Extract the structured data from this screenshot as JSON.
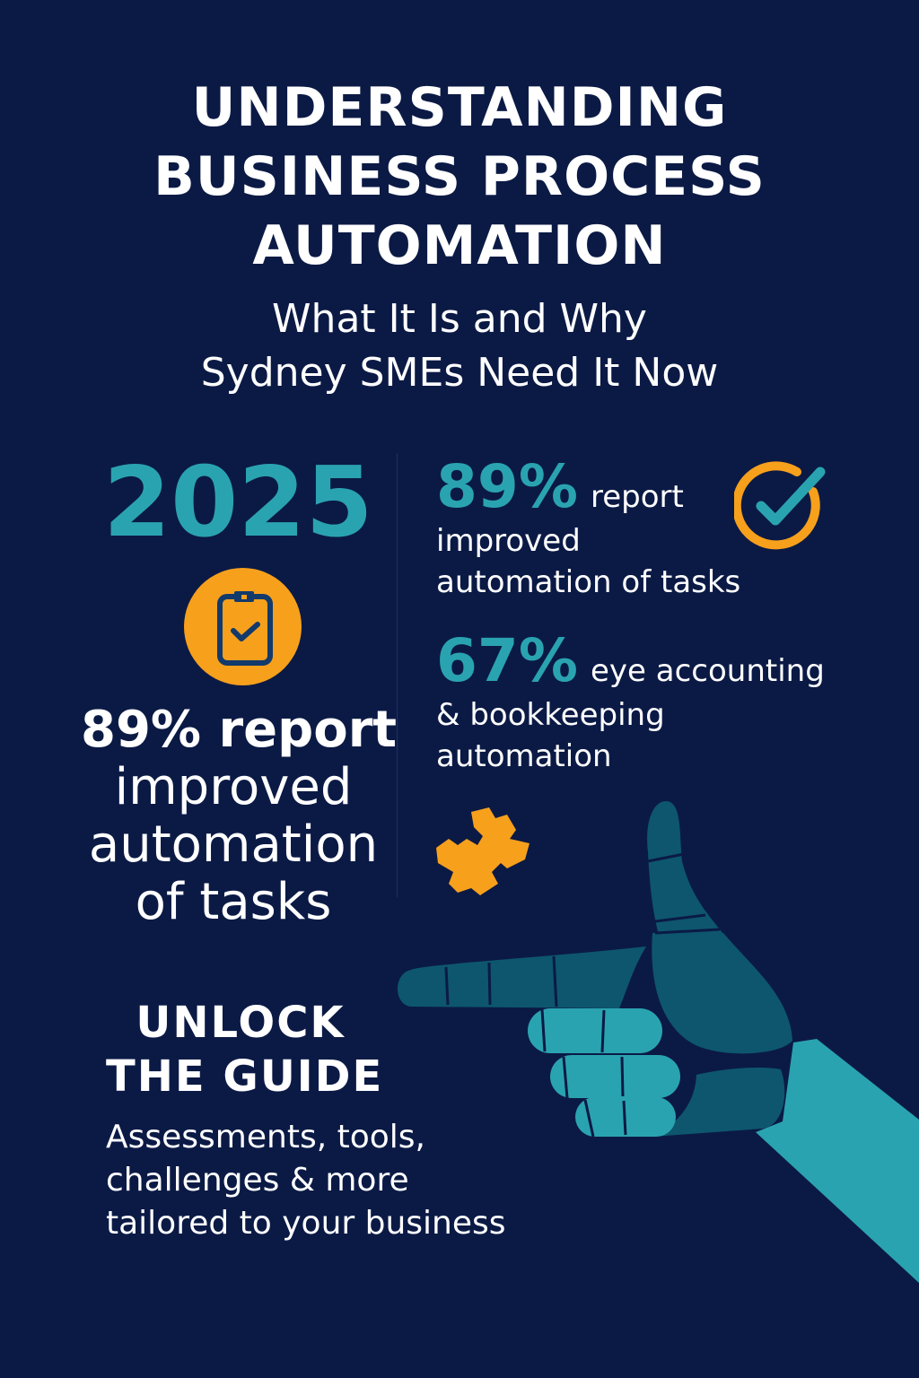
{
  "header": {
    "title_lines": [
      "UNDERSTANDING",
      "BUSINESS PROCESS",
      "AUTOMATION"
    ],
    "subtitle_lines": [
      "What It Is and Why",
      "Sydney SMEs Need It Now"
    ]
  },
  "left": {
    "year": "2025",
    "icon": "clipboard-check-icon",
    "stat_lines": [
      "89% report",
      "improved",
      "automation",
      "of tasks"
    ]
  },
  "right": {
    "stats": [
      {
        "percent": "89%",
        "text_lines": [
          "report",
          "improved",
          "automation of tasks"
        ],
        "icon": "checkmark-circle-icon"
      },
      {
        "percent": "67%",
        "text_lines": [
          "eye accounting",
          "& bookkeeping",
          "automation"
        ]
      }
    ],
    "puzzle_icon": "puzzle-piece-icon"
  },
  "cta": {
    "title_lines": [
      "UNLOCK",
      "THE GUIDE"
    ],
    "body_lines": [
      "Assessments, tools,",
      "challenges & more",
      "tailored to your business"
    ]
  },
  "colors": {
    "background": "#0b1a45",
    "teal": "#2aa3b0",
    "dark_teal": "#0d566e",
    "orange": "#f7a01c"
  }
}
